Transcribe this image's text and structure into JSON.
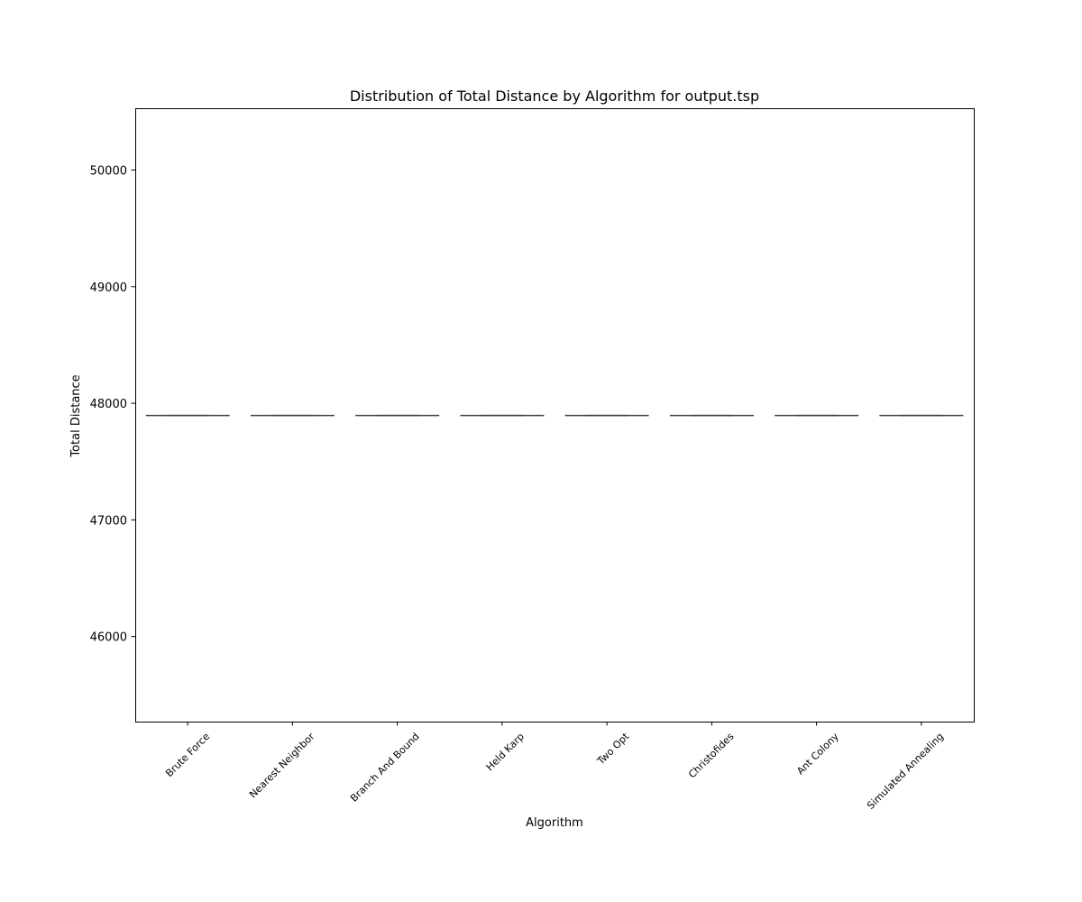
{
  "chart_data": {
    "type": "box",
    "title": "Distribution of Total Distance by Algorithm for output.tsp",
    "xlabel": "Algorithm",
    "ylabel": "Total Distance",
    "categories": [
      "Brute Force",
      "Nearest Neighbor",
      "Branch And Bound",
      "Held Karp",
      "Two Opt",
      "Christofides",
      "Ant Colony",
      "Simulated Annealing"
    ],
    "values": [
      47895,
      47895,
      47895,
      47895,
      47895,
      47895,
      47895,
      47895
    ],
    "ylim": [
      45270,
      50530
    ],
    "yticks": [
      46000,
      47000,
      48000,
      49000,
      50000
    ],
    "ytick_labels": [
      "46000",
      "47000",
      "48000",
      "49000",
      "50000"
    ],
    "grid": false,
    "line_color": "#404040",
    "axes_color": "#000000"
  }
}
